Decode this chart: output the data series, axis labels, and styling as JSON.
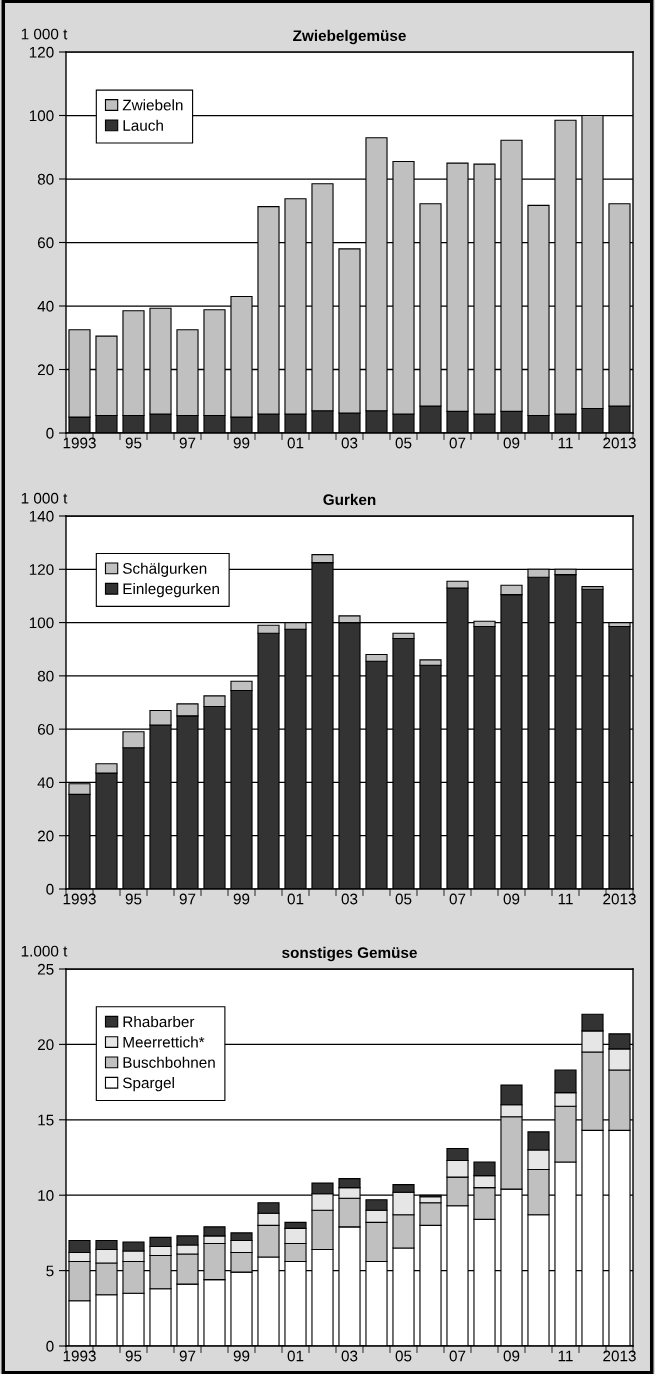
{
  "chart_data": [
    {
      "type": "bar",
      "stacked": true,
      "title": "Zwiebelgemüse",
      "ylabel": "1 000 t",
      "categories": [
        "1993",
        null,
        "95",
        null,
        "97",
        null,
        "99",
        null,
        "01",
        null,
        "03",
        null,
        "05",
        null,
        "07",
        null,
        "09",
        null,
        "11",
        null,
        "2013"
      ],
      "ylim": [
        0,
        120
      ],
      "yticks": [
        0,
        20,
        40,
        60,
        80,
        100,
        120
      ],
      "grid": "y",
      "legend": "top left",
      "series": [
        {
          "name": "Lauch",
          "color": "#333333",
          "values": [
            5,
            5.5,
            5.5,
            6,
            5.5,
            5.5,
            5,
            6,
            6,
            7,
            6.3,
            7,
            6,
            8.5,
            6.8,
            6,
            6.8,
            5.5,
            6,
            7.7,
            8.5
          ]
        },
        {
          "name": "Zwiebeln",
          "color": "#c0c0c0",
          "values": [
            27.5,
            25,
            33,
            33.3,
            27,
            33.3,
            38,
            65.3,
            67.8,
            71.5,
            51.7,
            86,
            79.5,
            63.7,
            78.2,
            78.7,
            85.4,
            66.2,
            92.5,
            92.3,
            63.7
          ]
        }
      ]
    },
    {
      "type": "bar",
      "stacked": true,
      "title": "Gurken",
      "ylabel": "1 000 t",
      "categories": [
        "1993",
        null,
        "95",
        null,
        "97",
        null,
        "99",
        null,
        "01",
        null,
        "03",
        null,
        "05",
        null,
        "07",
        null,
        "09",
        null,
        "11",
        null,
        "2013"
      ],
      "ylim": [
        0,
        140
      ],
      "yticks": [
        0,
        20,
        40,
        60,
        80,
        100,
        120,
        140
      ],
      "grid": "y",
      "legend": "top left",
      "series": [
        {
          "name": "Einlegegurken",
          "color": "#333333",
          "values": [
            35.5,
            43.5,
            53,
            61.5,
            65,
            68.5,
            74.5,
            96,
            97.5,
            122.5,
            100,
            85.5,
            94,
            84,
            113,
            98.5,
            110.5,
            117,
            118,
            112.5,
            98.5
          ]
        },
        {
          "name": "Schälgurken",
          "color": "#c0c0c0",
          "values": [
            4,
            3.5,
            6,
            5.5,
            4.5,
            4,
            3.5,
            3,
            2.5,
            3,
            2.5,
            2.5,
            2,
            2,
            2.5,
            2,
            3.5,
            3,
            2,
            1,
            1.5
          ]
        }
      ]
    },
    {
      "type": "bar",
      "stacked": true,
      "title": "sonstiges Gemüse",
      "ylabel": "1.000 t",
      "categories": [
        "1993",
        null,
        "95",
        null,
        "97",
        null,
        "99",
        null,
        "01",
        null,
        "03",
        null,
        "05",
        null,
        "07",
        null,
        "09",
        null,
        "11",
        null,
        "2013"
      ],
      "ylim": [
        0,
        25
      ],
      "yticks": [
        0,
        5,
        10,
        15,
        20,
        25
      ],
      "grid": "y",
      "legend": "top left",
      "series": [
        {
          "name": "Spargel",
          "color": "#ffffff",
          "values": [
            3.0,
            3.4,
            3.5,
            3.8,
            4.1,
            4.4,
            4.9,
            5.9,
            5.6,
            6.4,
            7.9,
            5.6,
            6.5,
            8.0,
            9.3,
            8.4,
            10.4,
            8.7,
            12.2,
            14.3,
            14.3
          ]
        },
        {
          "name": "Buschbohnen",
          "color": "#c0c0c0",
          "values": [
            2.6,
            2.1,
            2.1,
            2.2,
            2.0,
            2.4,
            1.3,
            2.1,
            1.2,
            2.6,
            1.9,
            2.6,
            2.2,
            1.5,
            1.9,
            2.1,
            4.8,
            3.0,
            3.7,
            5.2,
            4.0
          ]
        },
        {
          "name": "Meerrettich*",
          "color": "#e6e6e6",
          "values": [
            0.6,
            0.9,
            0.7,
            0.6,
            0.6,
            0.5,
            0.8,
            0.8,
            1.0,
            1.1,
            0.7,
            0.8,
            1.5,
            0.4,
            1.1,
            0.8,
            0.8,
            1.3,
            0.9,
            1.4,
            1.4
          ]
        },
        {
          "name": "Rhabarber",
          "color": "#333333",
          "values": [
            0.8,
            0.6,
            0.6,
            0.6,
            0.6,
            0.6,
            0.5,
            0.7,
            0.4,
            0.7,
            0.6,
            0.7,
            0.5,
            0.1,
            0.8,
            0.9,
            1.3,
            1.2,
            1.5,
            1.1,
            1.0
          ]
        }
      ]
    }
  ]
}
